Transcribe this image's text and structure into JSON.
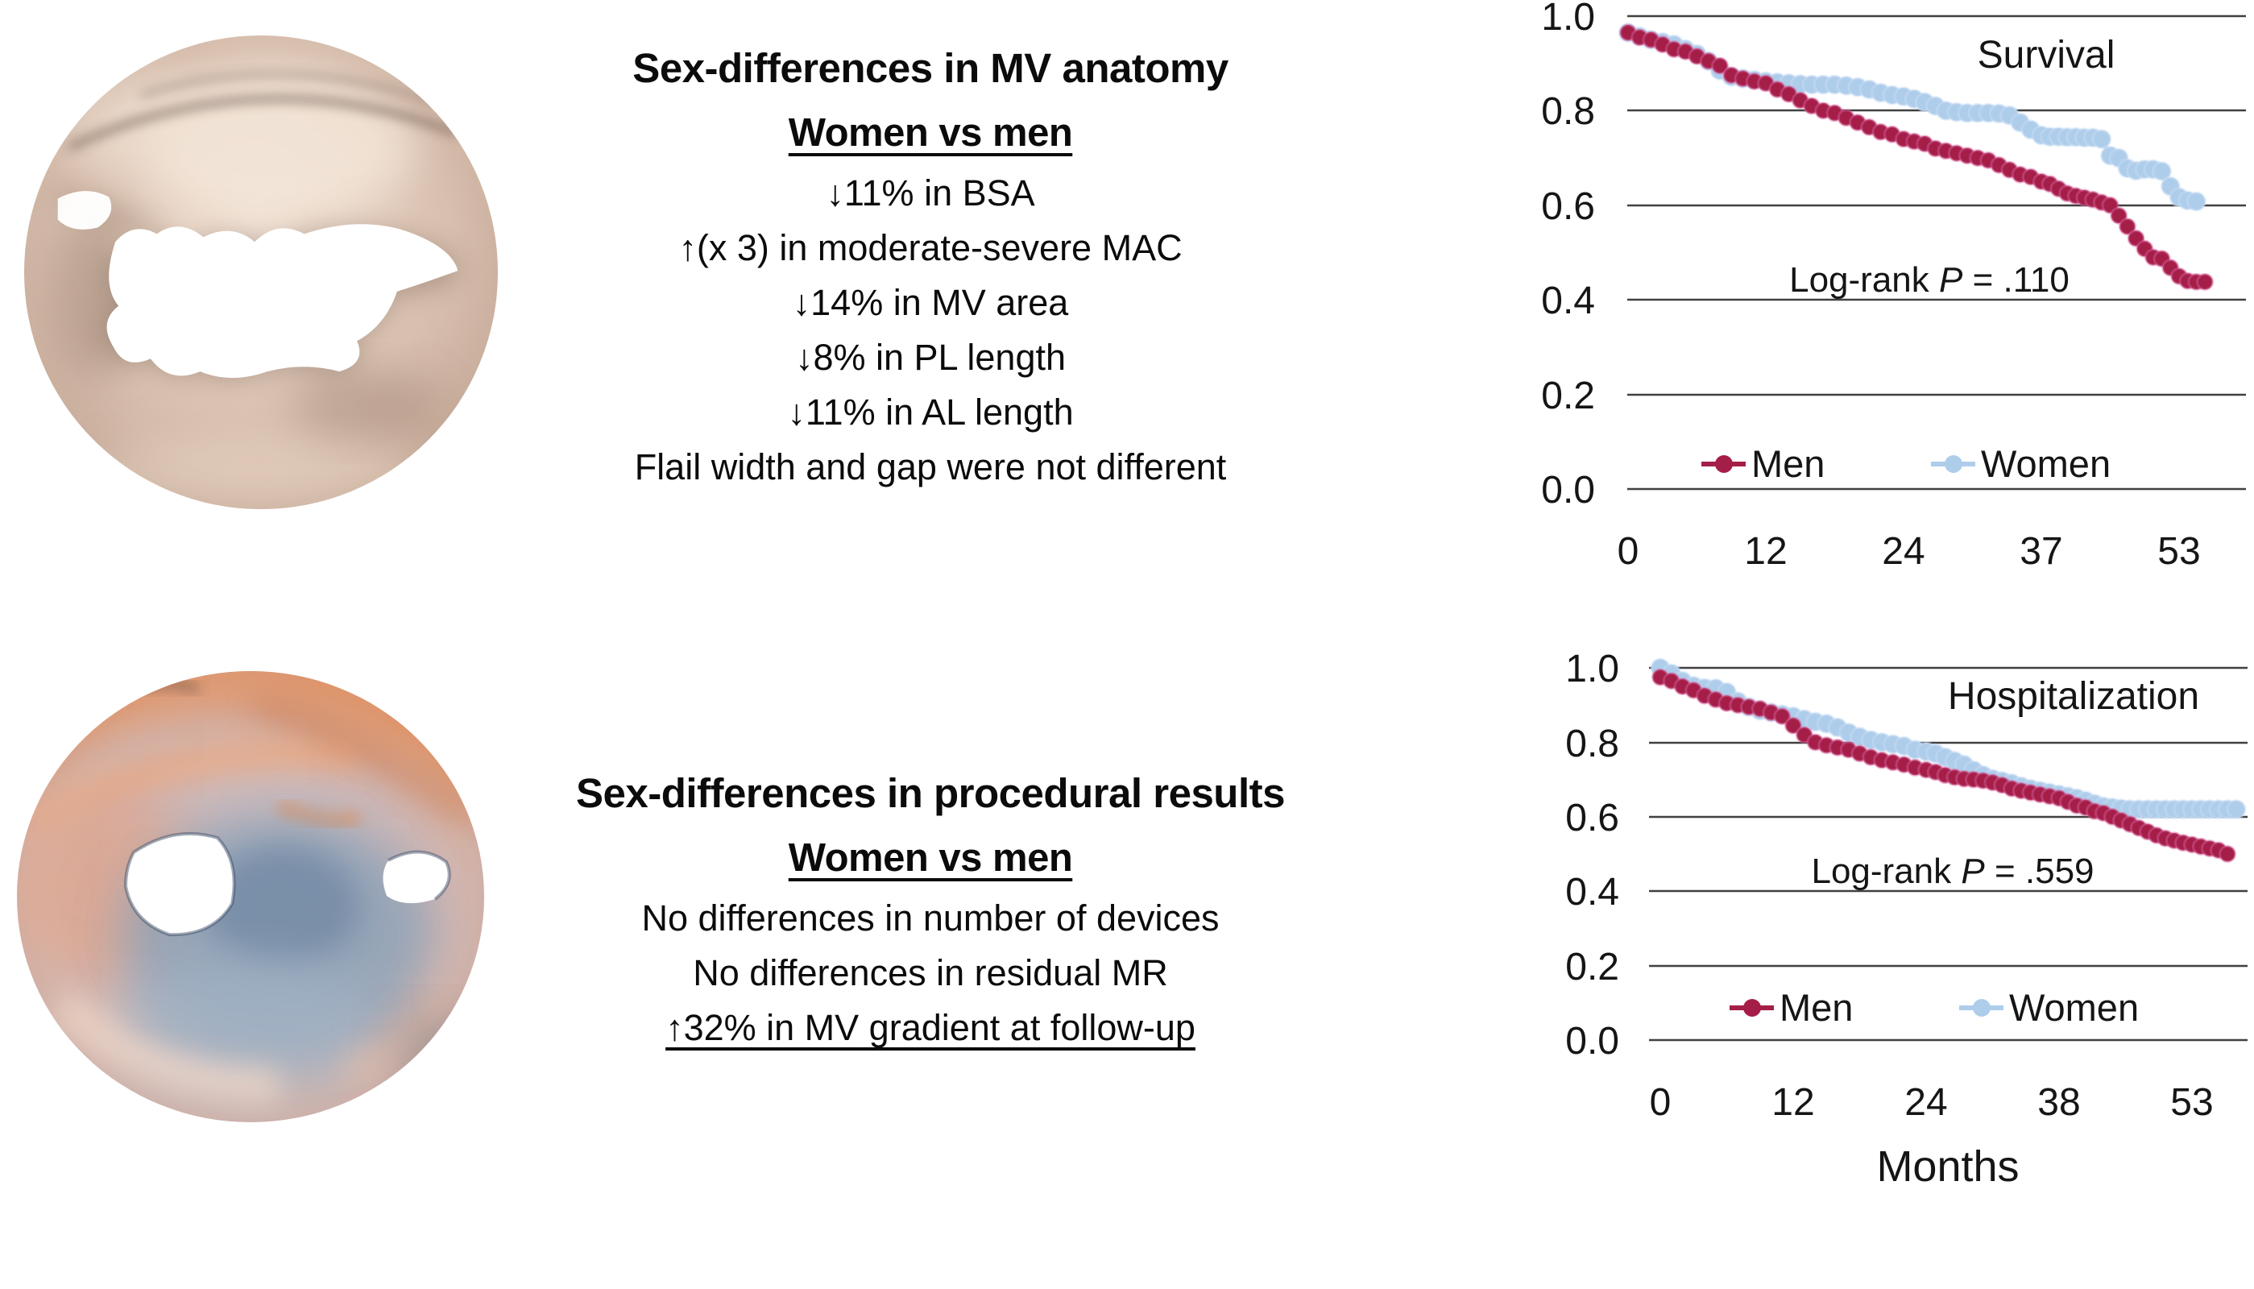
{
  "panels": {
    "anatomy": {
      "title": "Sex-differences in MV anatomy",
      "subtitle": "Women vs men",
      "lines": [
        "↓11% in BSA",
        "↑(x 3) in moderate-severe MAC",
        "↓14% in MV area",
        "↓8% in PL length",
        "↓11% in AL length",
        "Flail width and gap were not different"
      ]
    },
    "procedural": {
      "title": "Sex-differences in procedural results",
      "subtitle": "Women vs men",
      "lines": [
        "No differences in number of devices",
        "No differences in residual MR",
        "↑32% in MV gradient at follow-up"
      ]
    }
  },
  "images": {
    "anatomy": "mv-3d-echo-atrial-view",
    "procedural": "mv-3d-echo-post-procedure-view"
  },
  "colors": {
    "men": "#A51E48",
    "men_halo": "#D4629B",
    "women": "#AECDEB",
    "women_halo": "#C9DEF3",
    "grid": "#404040"
  },
  "chart_data": [
    {
      "type": "line",
      "title": "Survival",
      "log_rank": {
        "before": "Log-rank ",
        "p": "P",
        "after": " = .110"
      },
      "xlabel": "",
      "ylabel": "",
      "ylim": [
        0.0,
        1.0
      ],
      "grid": true,
      "legend_position": "bottom-inside",
      "y_ticks": [
        "1.0",
        "0.8",
        "0.6",
        "0.4",
        "0.2",
        "0.0"
      ],
      "x_tick_months": [
        0,
        12,
        24,
        37,
        53
      ],
      "series": [
        {
          "name": "Men",
          "color": "#A51E48",
          "points": [
            [
              0,
              0.965
            ],
            [
              1,
              0.955
            ],
            [
              2,
              0.95
            ],
            [
              3,
              0.94
            ],
            [
              4,
              0.93
            ],
            [
              5,
              0.925
            ],
            [
              6,
              0.915
            ],
            [
              7,
              0.905
            ],
            [
              8,
              0.895
            ],
            [
              9,
              0.875
            ],
            [
              10,
              0.868
            ],
            [
              11,
              0.862
            ],
            [
              12,
              0.858
            ],
            [
              13,
              0.845
            ],
            [
              14,
              0.835
            ],
            [
              15,
              0.822
            ],
            [
              16,
              0.81
            ],
            [
              17,
              0.8
            ],
            [
              18,
              0.795
            ],
            [
              19,
              0.785
            ],
            [
              20,
              0.775
            ],
            [
              21,
              0.765
            ],
            [
              22,
              0.755
            ],
            [
              23,
              0.75
            ],
            [
              24,
              0.74
            ],
            [
              25,
              0.735
            ],
            [
              26,
              0.73
            ],
            [
              27,
              0.72
            ],
            [
              28,
              0.715
            ],
            [
              29,
              0.71
            ],
            [
              30,
              0.705
            ],
            [
              31,
              0.7
            ],
            [
              32,
              0.695
            ],
            [
              33,
              0.685
            ],
            [
              34,
              0.675
            ],
            [
              35,
              0.665
            ],
            [
              36,
              0.66
            ],
            [
              37,
              0.65
            ],
            [
              38,
              0.645
            ],
            [
              39,
              0.635
            ],
            [
              40,
              0.625
            ],
            [
              41,
              0.62
            ],
            [
              42,
              0.616
            ],
            [
              43,
              0.612
            ],
            [
              44,
              0.606
            ],
            [
              45,
              0.6
            ],
            [
              46,
              0.578
            ],
            [
              47,
              0.555
            ],
            [
              48,
              0.53
            ],
            [
              49,
              0.508
            ],
            [
              50,
              0.49
            ],
            [
              51,
              0.487
            ],
            [
              52,
              0.468
            ],
            [
              53,
              0.45
            ],
            [
              54,
              0.44
            ],
            [
              55,
              0.438
            ],
            [
              56,
              0.438
            ]
          ]
        },
        {
          "name": "Women",
          "color": "#AECDEB",
          "points": [
            [
              0,
              0.965
            ],
            [
              1,
              0.957
            ],
            [
              2,
              0.95
            ],
            [
              3,
              0.945
            ],
            [
              4,
              0.94
            ],
            [
              5,
              0.93
            ],
            [
              6,
              0.92
            ],
            [
              7,
              0.905
            ],
            [
              8,
              0.885
            ],
            [
              9,
              0.872
            ],
            [
              10,
              0.868
            ],
            [
              11,
              0.865
            ],
            [
              12,
              0.862
            ],
            [
              13,
              0.86
            ],
            [
              14,
              0.858
            ],
            [
              15,
              0.856
            ],
            [
              16,
              0.855
            ],
            [
              17,
              0.855
            ],
            [
              18,
              0.855
            ],
            [
              19,
              0.853
            ],
            [
              20,
              0.85
            ],
            [
              21,
              0.845
            ],
            [
              22,
              0.838
            ],
            [
              23,
              0.833
            ],
            [
              24,
              0.83
            ],
            [
              25,
              0.825
            ],
            [
              26,
              0.818
            ],
            [
              27,
              0.81
            ],
            [
              28,
              0.8
            ],
            [
              29,
              0.797
            ],
            [
              30,
              0.795
            ],
            [
              31,
              0.795
            ],
            [
              32,
              0.795
            ],
            [
              33,
              0.794
            ],
            [
              34,
              0.79
            ],
            [
              35,
              0.775
            ],
            [
              36,
              0.76
            ],
            [
              37,
              0.748
            ],
            [
              38,
              0.745
            ],
            [
              39,
              0.745
            ],
            [
              40,
              0.744
            ],
            [
              41,
              0.744
            ],
            [
              42,
              0.743
            ],
            [
              43,
              0.743
            ],
            [
              44,
              0.74
            ],
            [
              45,
              0.705
            ],
            [
              46,
              0.7
            ],
            [
              47,
              0.678
            ],
            [
              48,
              0.673
            ],
            [
              49,
              0.676
            ],
            [
              50,
              0.676
            ],
            [
              51,
              0.672
            ],
            [
              52,
              0.64
            ],
            [
              53,
              0.617
            ],
            [
              54,
              0.61
            ],
            [
              55,
              0.608
            ]
          ]
        }
      ]
    },
    {
      "type": "line",
      "title": "Hospitalization",
      "log_rank": {
        "before": "Log-rank ",
        "p": "P",
        "after": " = .559"
      },
      "xlabel": "Months",
      "ylabel": "",
      "ylim": [
        0.0,
        1.0
      ],
      "grid": true,
      "legend_position": "bottom-inside",
      "y_ticks": [
        "1.0",
        "0.8",
        "0.6",
        "0.4",
        "0.2",
        "0.0"
      ],
      "x_tick_months": [
        0,
        12,
        24,
        38,
        53
      ],
      "series": [
        {
          "name": "Men",
          "color": "#A51E48",
          "points": [
            [
              0,
              0.975
            ],
            [
              1,
              0.965
            ],
            [
              2,
              0.95
            ],
            [
              3,
              0.94
            ],
            [
              4,
              0.925
            ],
            [
              5,
              0.915
            ],
            [
              6,
              0.905
            ],
            [
              7,
              0.9
            ],
            [
              8,
              0.895
            ],
            [
              9,
              0.89
            ],
            [
              10,
              0.88
            ],
            [
              11,
              0.87
            ],
            [
              12,
              0.845
            ],
            [
              13,
              0.82
            ],
            [
              14,
              0.8
            ],
            [
              15,
              0.792
            ],
            [
              16,
              0.786
            ],
            [
              17,
              0.78
            ],
            [
              18,
              0.77
            ],
            [
              19,
              0.76
            ],
            [
              20,
              0.752
            ],
            [
              21,
              0.746
            ],
            [
              22,
              0.74
            ],
            [
              23,
              0.732
            ],
            [
              24,
              0.726
            ],
            [
              25,
              0.72
            ],
            [
              26,
              0.712
            ],
            [
              27,
              0.706
            ],
            [
              28,
              0.702
            ],
            [
              29,
              0.7
            ],
            [
              30,
              0.697
            ],
            [
              31,
              0.692
            ],
            [
              32,
              0.685
            ],
            [
              33,
              0.676
            ],
            [
              34,
              0.67
            ],
            [
              35,
              0.665
            ],
            [
              36,
              0.66
            ],
            [
              37,
              0.655
            ],
            [
              38,
              0.65
            ],
            [
              39,
              0.64
            ],
            [
              40,
              0.63
            ],
            [
              41,
              0.625
            ],
            [
              42,
              0.615
            ],
            [
              43,
              0.61
            ],
            [
              44,
              0.6
            ],
            [
              45,
              0.59
            ],
            [
              46,
              0.58
            ],
            [
              47,
              0.57
            ],
            [
              48,
              0.56
            ],
            [
              49,
              0.55
            ],
            [
              50,
              0.542
            ],
            [
              51,
              0.536
            ],
            [
              52,
              0.53
            ],
            [
              53,
              0.525
            ],
            [
              54,
              0.52
            ],
            [
              55,
              0.515
            ],
            [
              56,
              0.51
            ],
            [
              57,
              0.5
            ]
          ]
        },
        {
          "name": "Women",
          "color": "#AECDEB",
          "points": [
            [
              0,
              1.0
            ],
            [
              1,
              0.985
            ],
            [
              2,
              0.965
            ],
            [
              3,
              0.952
            ],
            [
              4,
              0.946
            ],
            [
              5,
              0.945
            ],
            [
              6,
              0.935
            ],
            [
              7,
              0.91
            ],
            [
              8,
              0.895
            ],
            [
              9,
              0.885
            ],
            [
              10,
              0.88
            ],
            [
              11,
              0.875
            ],
            [
              12,
              0.87
            ],
            [
              13,
              0.862
            ],
            [
              14,
              0.855
            ],
            [
              15,
              0.85
            ],
            [
              16,
              0.84
            ],
            [
              17,
              0.826
            ],
            [
              18,
              0.815
            ],
            [
              19,
              0.806
            ],
            [
              20,
              0.8
            ],
            [
              21,
              0.795
            ],
            [
              22,
              0.79
            ],
            [
              23,
              0.78
            ],
            [
              24,
              0.775
            ],
            [
              25,
              0.77
            ],
            [
              26,
              0.76
            ],
            [
              27,
              0.75
            ],
            [
              28,
              0.74
            ],
            [
              29,
              0.725
            ],
            [
              30,
              0.712
            ],
            [
              31,
              0.702
            ],
            [
              32,
              0.696
            ],
            [
              33,
              0.69
            ],
            [
              34,
              0.682
            ],
            [
              35,
              0.675
            ],
            [
              36,
              0.67
            ],
            [
              37,
              0.665
            ],
            [
              38,
              0.66
            ],
            [
              39,
              0.655
            ],
            [
              40,
              0.65
            ],
            [
              41,
              0.643
            ],
            [
              42,
              0.635
            ],
            [
              43,
              0.628
            ],
            [
              44,
              0.625
            ],
            [
              45,
              0.622
            ],
            [
              46,
              0.62
            ],
            [
              47,
              0.62
            ],
            [
              48,
              0.62
            ],
            [
              49,
              0.62
            ],
            [
              50,
              0.62
            ],
            [
              51,
              0.62
            ],
            [
              52,
              0.62
            ],
            [
              53,
              0.62
            ],
            [
              54,
              0.62
            ],
            [
              55,
              0.62
            ],
            [
              56,
              0.62
            ],
            [
              57,
              0.62
            ],
            [
              58,
              0.62
            ]
          ]
        }
      ]
    }
  ]
}
